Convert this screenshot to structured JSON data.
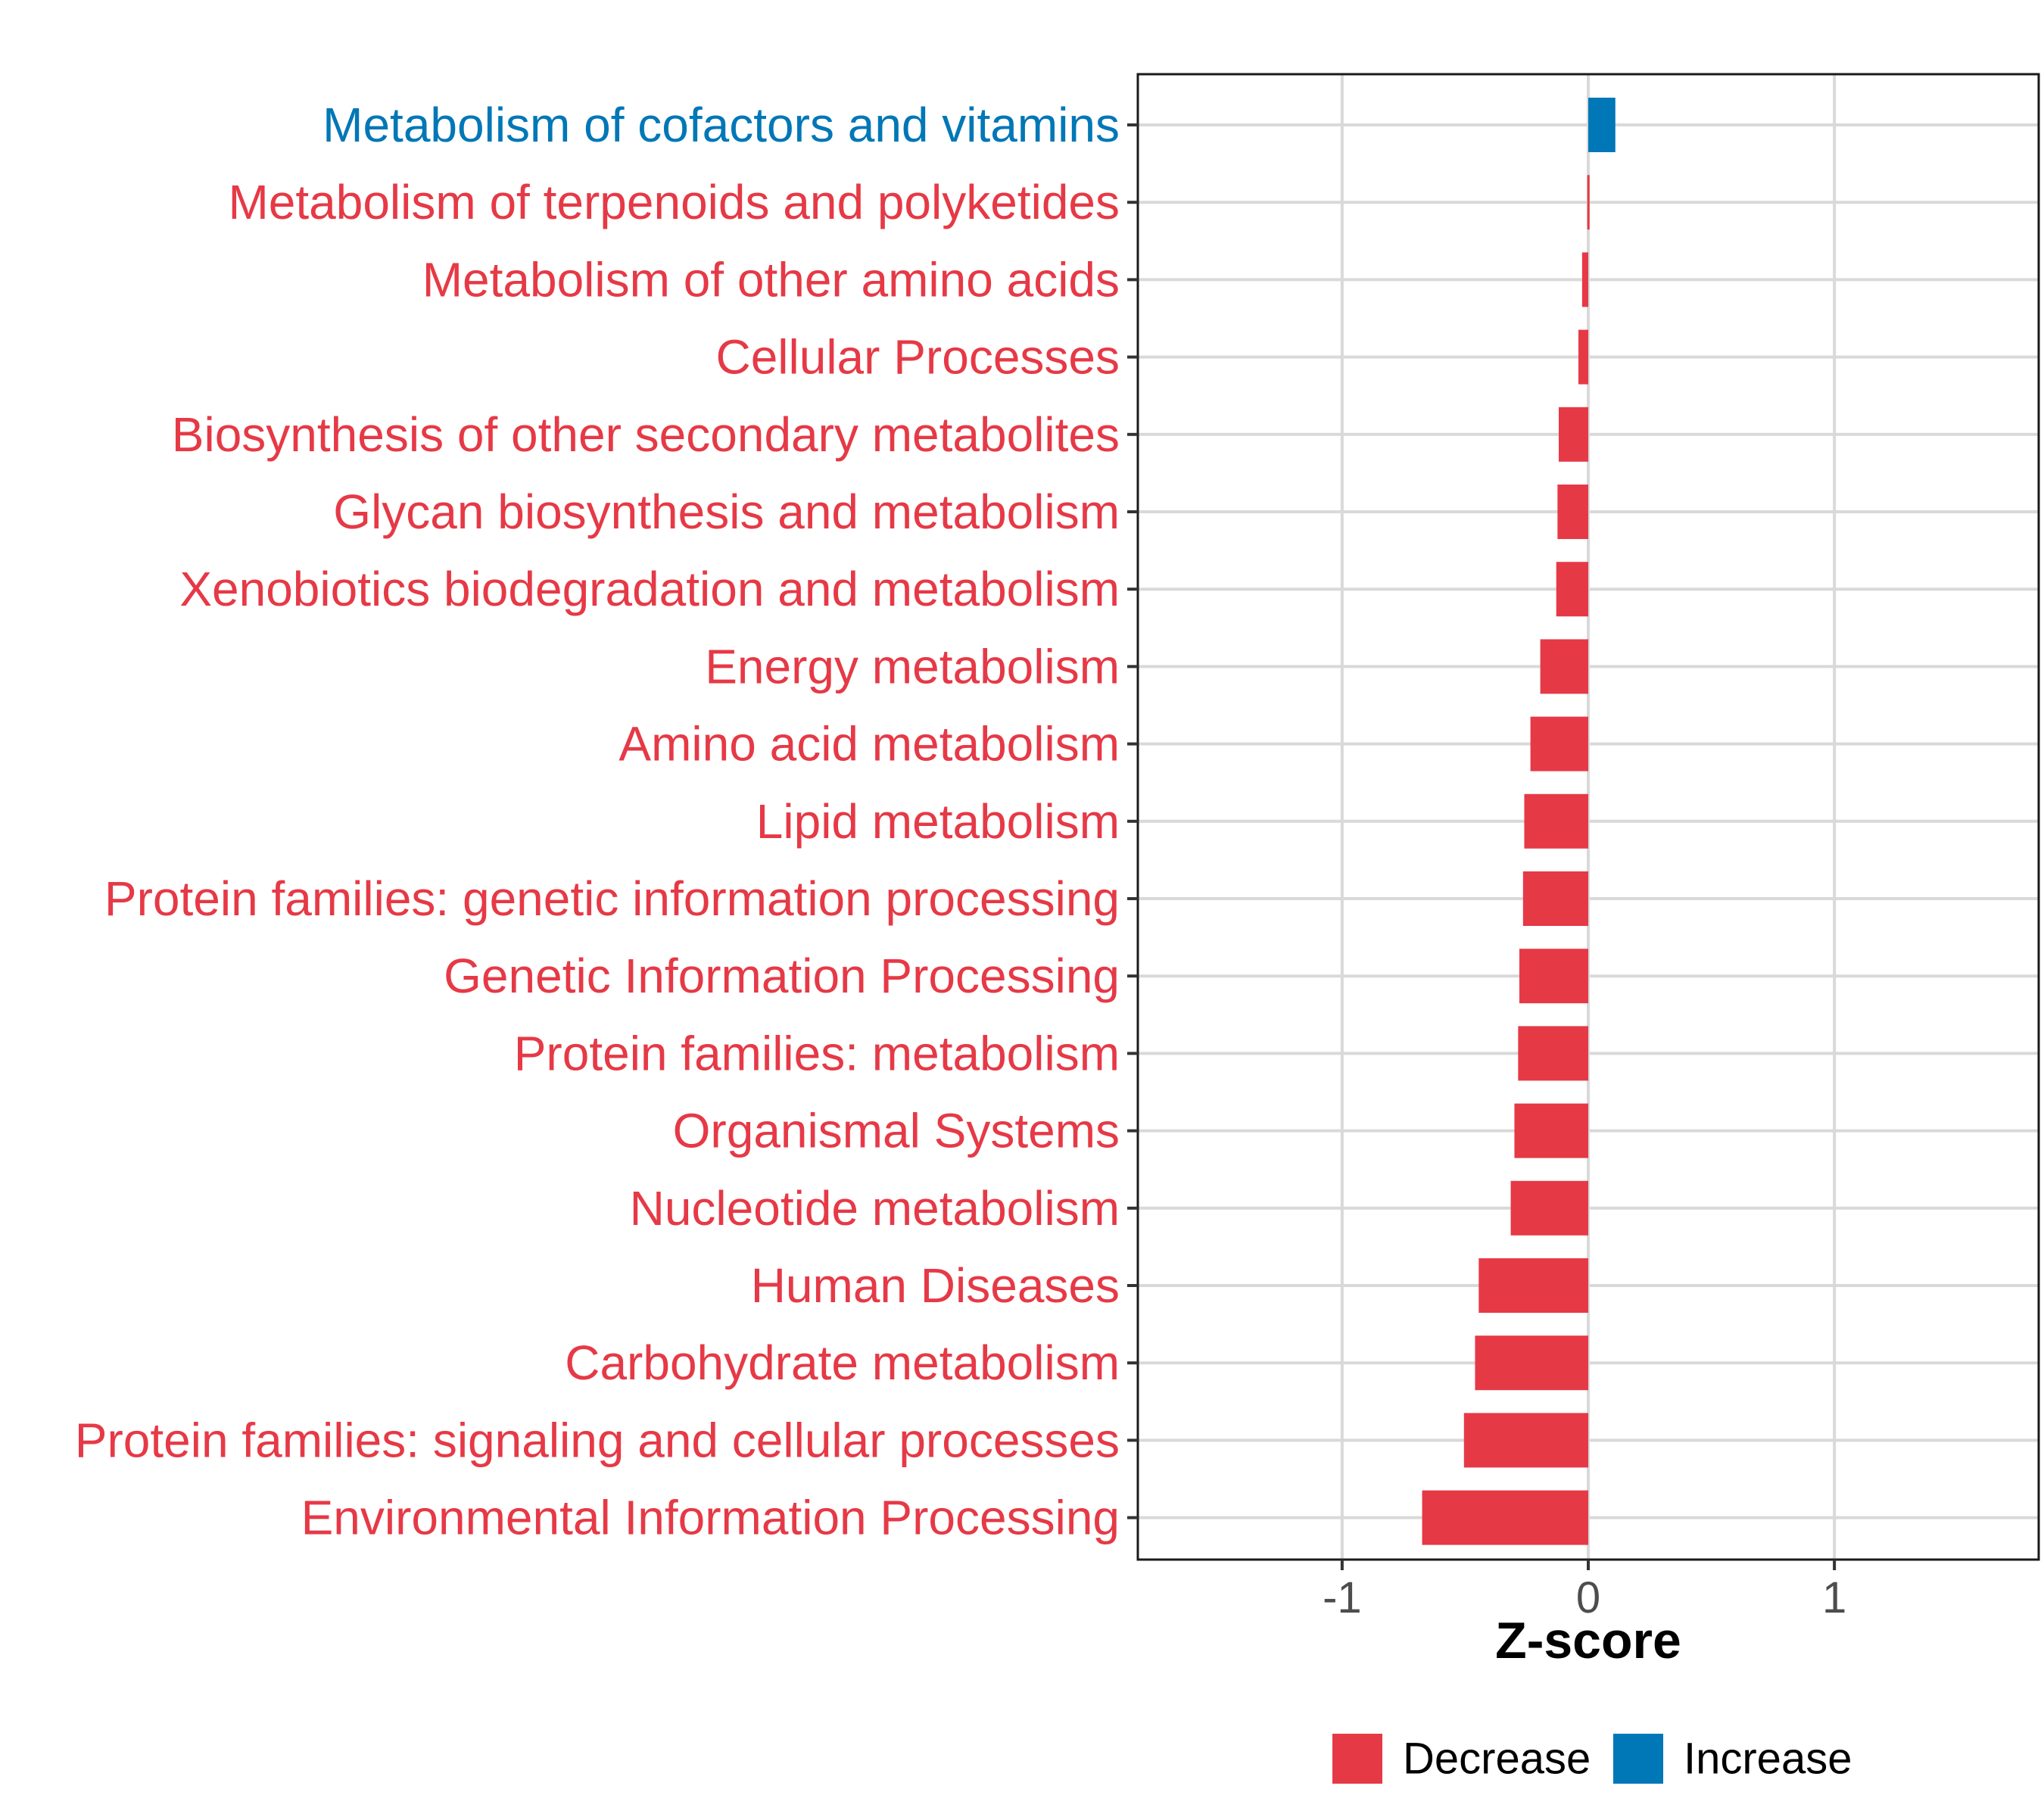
{
  "chart_data": {
    "type": "bar",
    "orientation": "horizontal",
    "xlabel": "Z-score",
    "xlim": [
      -1.83,
      1.83
    ],
    "xticks": [
      -1,
      0,
      1
    ],
    "xtick_labels": [
      "-1",
      "0",
      "1"
    ],
    "grid": true,
    "legend_position": "bottom",
    "colors": {
      "Decrease": "#E63946",
      "Increase": "#0077B6"
    },
    "legend": [
      {
        "label": "Decrease",
        "color": "#E63946"
      },
      {
        "label": "Increase",
        "color": "#0077B6"
      }
    ],
    "categories": [
      {
        "label": "Metabolism of cofactors and vitamins",
        "value": 0.11,
        "direction": "Increase"
      },
      {
        "label": "Metabolism of terpenoids and polyketides",
        "value": -0.004,
        "direction": "Decrease"
      },
      {
        "label": "Metabolism of other amino acids",
        "value": -0.025,
        "direction": "Decrease"
      },
      {
        "label": "Cellular Processes",
        "value": -0.04,
        "direction": "Decrease"
      },
      {
        "label": "Biosynthesis of other secondary metabolites",
        "value": -0.12,
        "direction": "Decrease"
      },
      {
        "label": "Glycan biosynthesis and metabolism",
        "value": -0.125,
        "direction": "Decrease"
      },
      {
        "label": "Xenobiotics biodegradation and metabolism",
        "value": -0.13,
        "direction": "Decrease"
      },
      {
        "label": "Energy metabolism",
        "value": -0.195,
        "direction": "Decrease"
      },
      {
        "label": "Amino acid metabolism",
        "value": -0.235,
        "direction": "Decrease"
      },
      {
        "label": "Lipid metabolism",
        "value": -0.26,
        "direction": "Decrease"
      },
      {
        "label": "Protein families: genetic information processing",
        "value": -0.265,
        "direction": "Decrease"
      },
      {
        "label": "Genetic Information Processing",
        "value": -0.28,
        "direction": "Decrease"
      },
      {
        "label": "Protein families: metabolism",
        "value": -0.285,
        "direction": "Decrease"
      },
      {
        "label": "Organismal Systems",
        "value": -0.3,
        "direction": "Decrease"
      },
      {
        "label": "Nucleotide metabolism",
        "value": -0.315,
        "direction": "Decrease"
      },
      {
        "label": "Human Diseases",
        "value": -0.445,
        "direction": "Decrease"
      },
      {
        "label": "Carbohydrate metabolism",
        "value": -0.46,
        "direction": "Decrease"
      },
      {
        "label": "Protein families: signaling and cellular processes",
        "value": -0.505,
        "direction": "Decrease"
      },
      {
        "label": "Environmental Information Processing",
        "value": -0.675,
        "direction": "Decrease"
      }
    ]
  }
}
